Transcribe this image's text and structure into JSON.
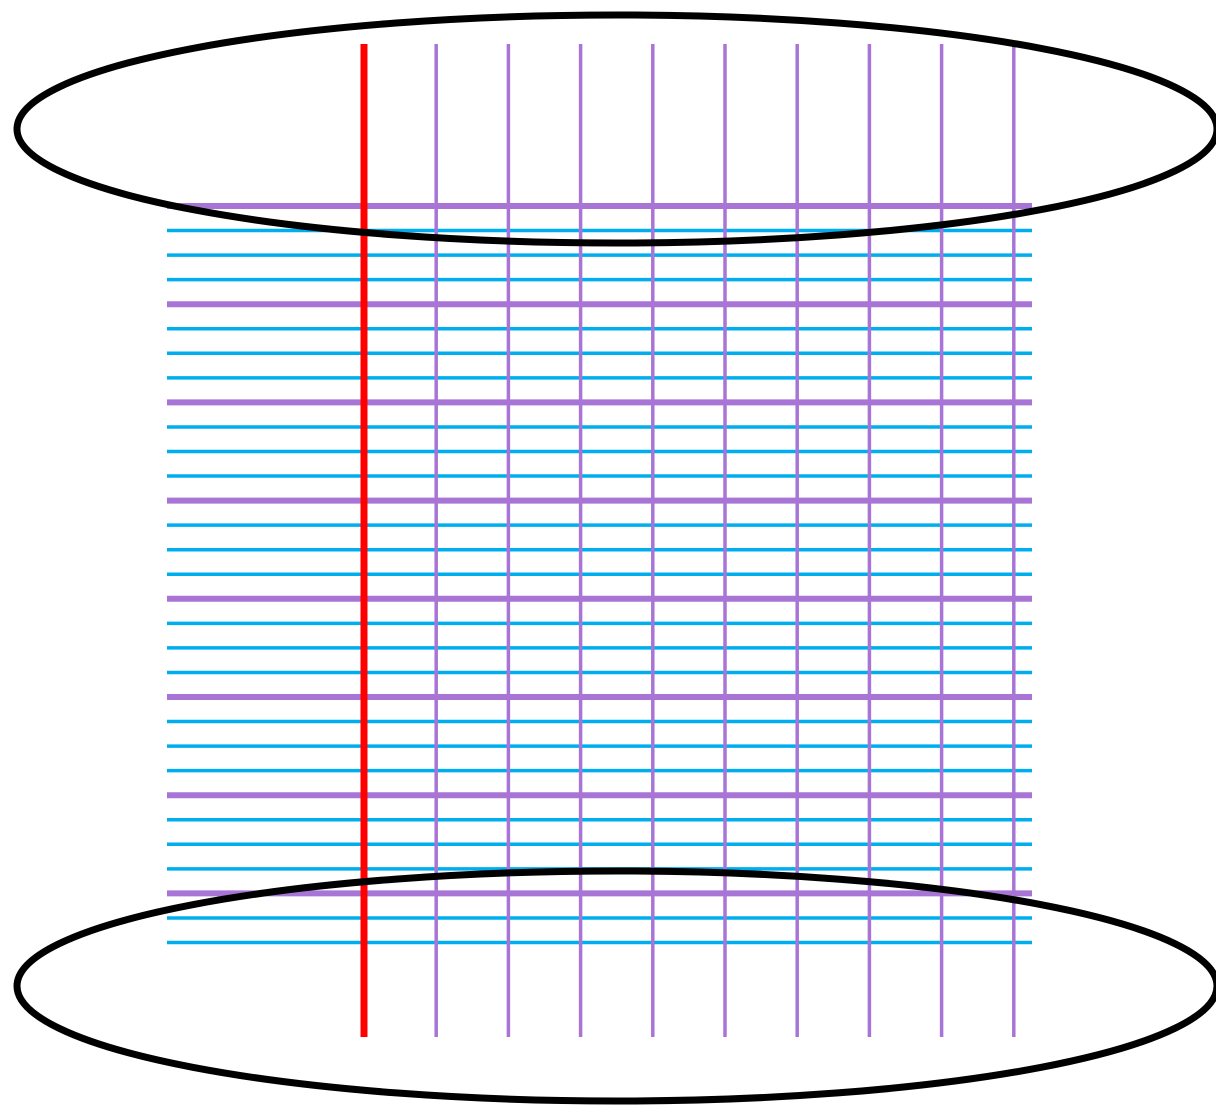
{
  "diagram": {
    "colors": {
      "background": "#ffffff",
      "ellipse_stroke": "#000000",
      "highlight_vertical": "#ff0000",
      "vertical_lines": "#a875d6",
      "major_horizontal_lines": "#a875d6",
      "minor_horizontal_lines": "#00aeef"
    },
    "vertical_line_count": 10,
    "highlighted_vertical_index": 0,
    "major_horizontal_line_count": 8,
    "minor_lines_between_major": 3,
    "minor_lines_after_last_major": 2
  }
}
